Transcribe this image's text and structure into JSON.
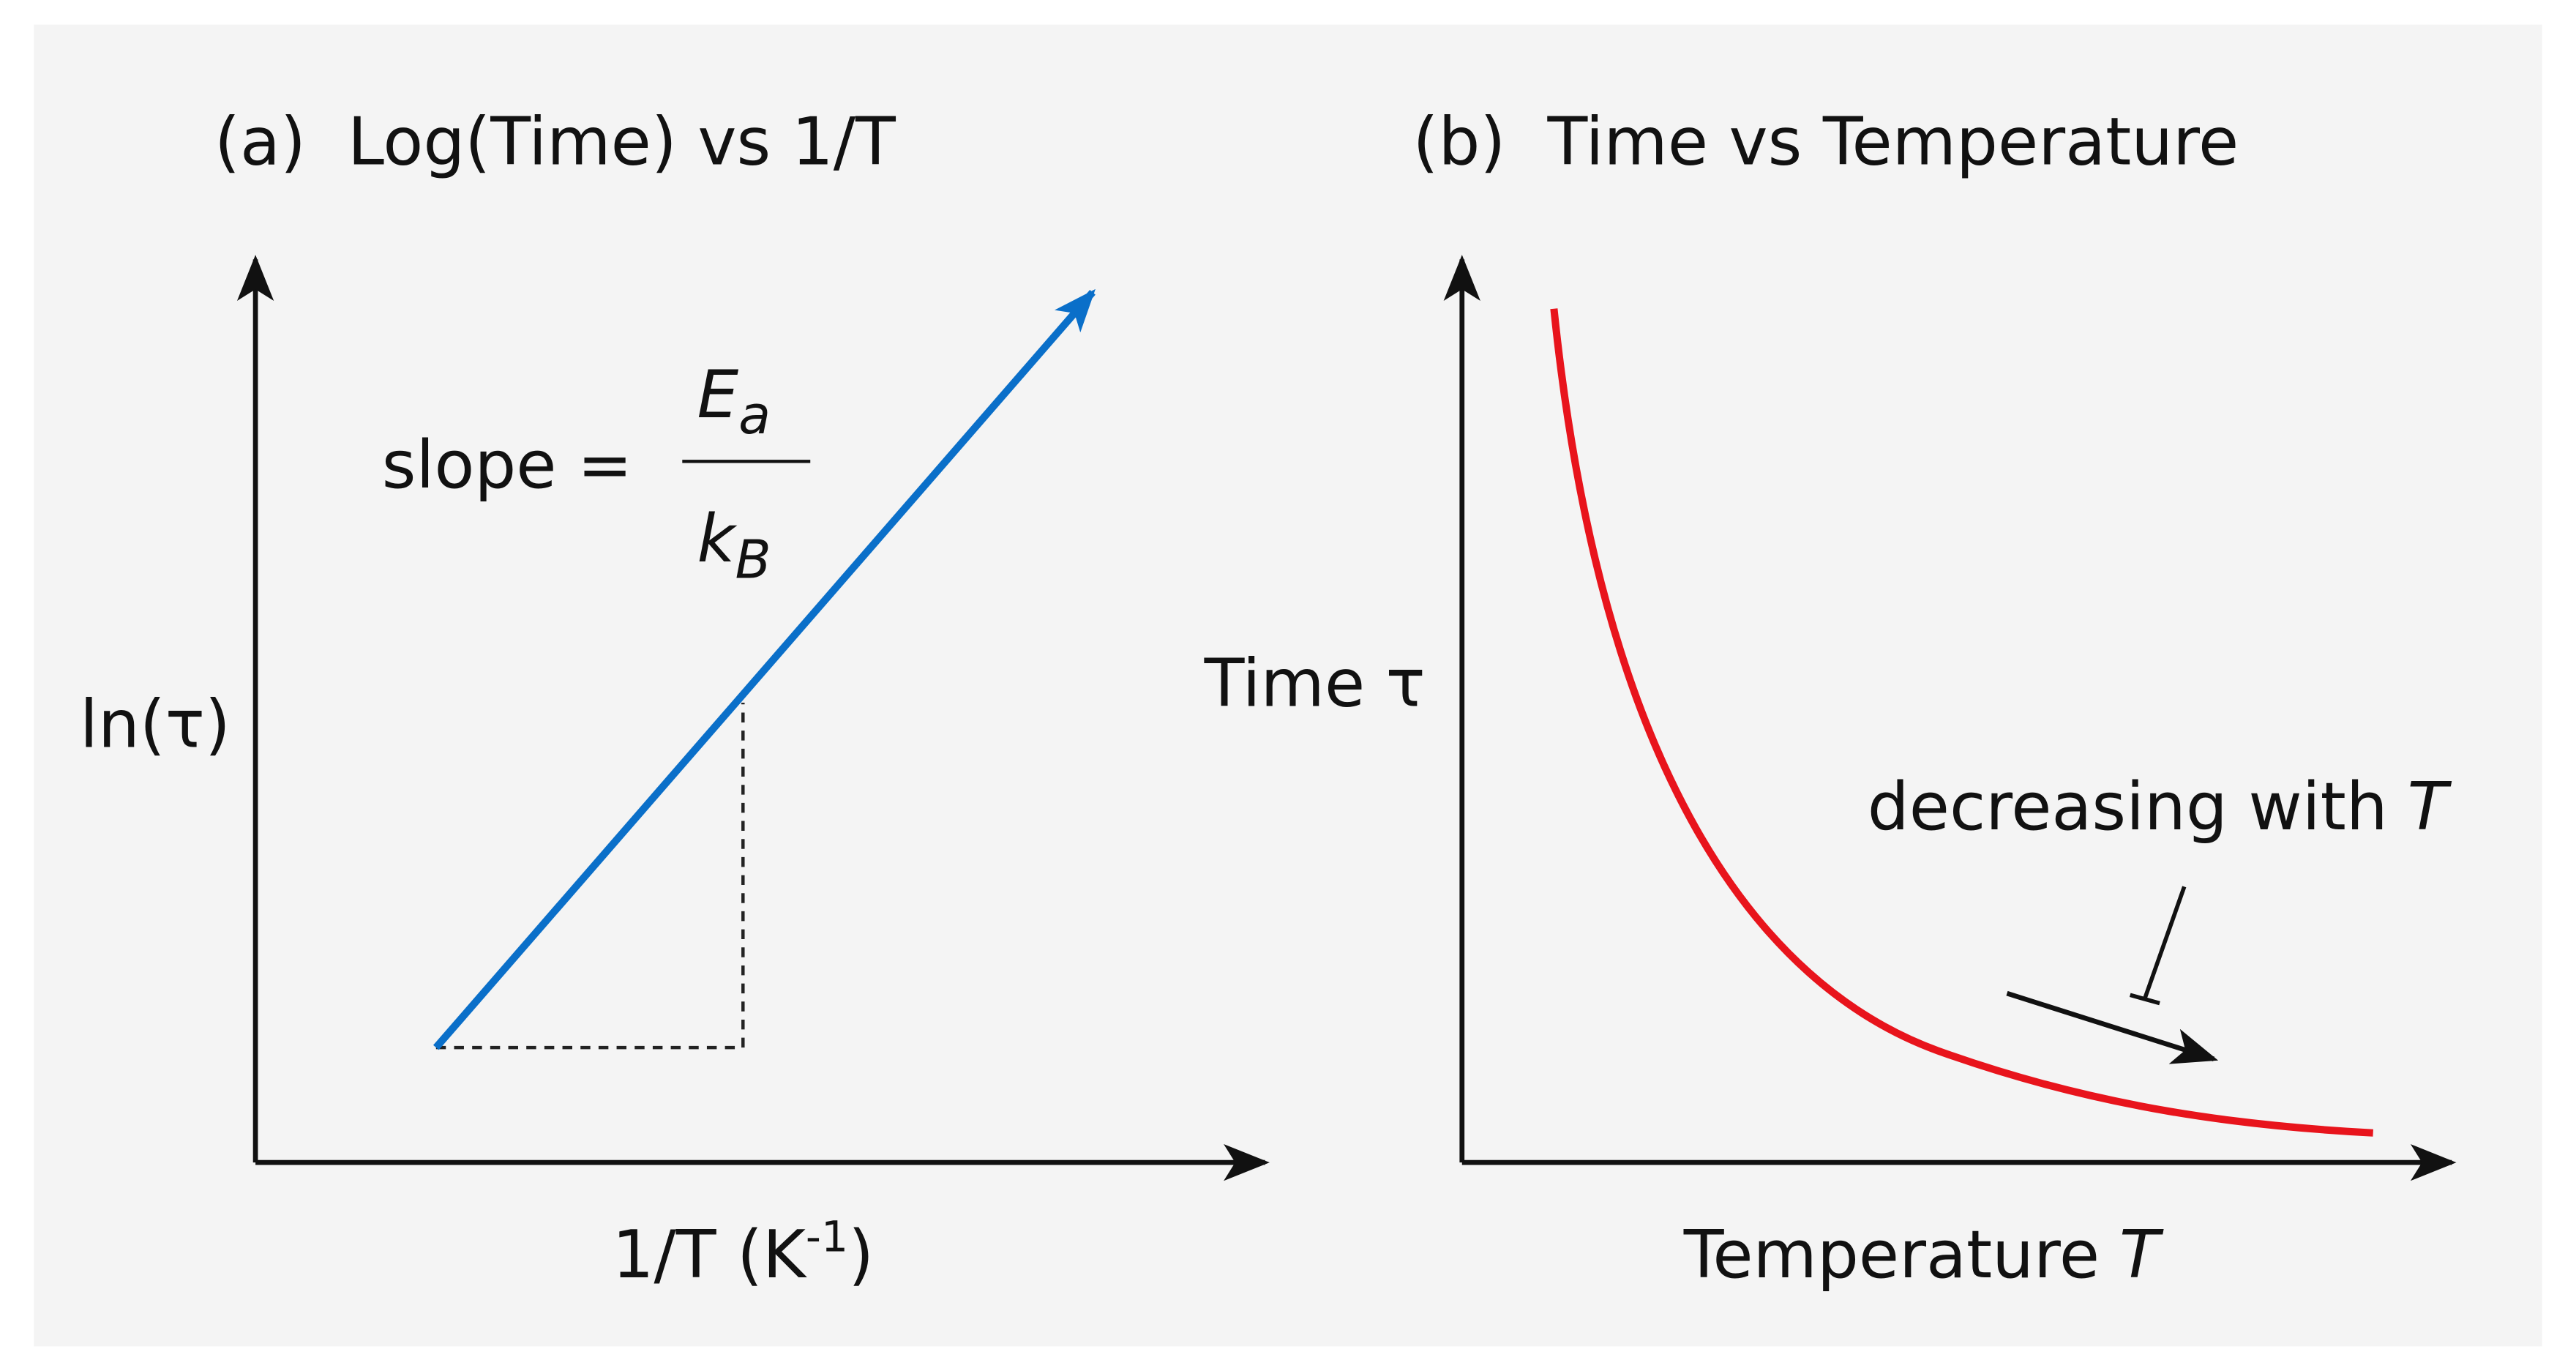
{
  "panel_a": {
    "title": "(a)  Log(Time) vs 1/T",
    "y_label": "ln(τ)",
    "x_label": {
      "text": "1/T (K",
      "superscript": "-1",
      "close": ")"
    },
    "slope": {
      "text": "slope =",
      "numerator": {
        "symbol": "E",
        "subscript": "a"
      },
      "denominator": {
        "symbol": "k",
        "subscript": "B"
      }
    }
  },
  "panel_b": {
    "title": "(b)  Time vs Temperature",
    "y_label": "Time τ",
    "x_label": {
      "text": "Temperature",
      "symbol": "T"
    },
    "annotation": {
      "text": "decreasing with",
      "symbol": "T"
    }
  }
}
